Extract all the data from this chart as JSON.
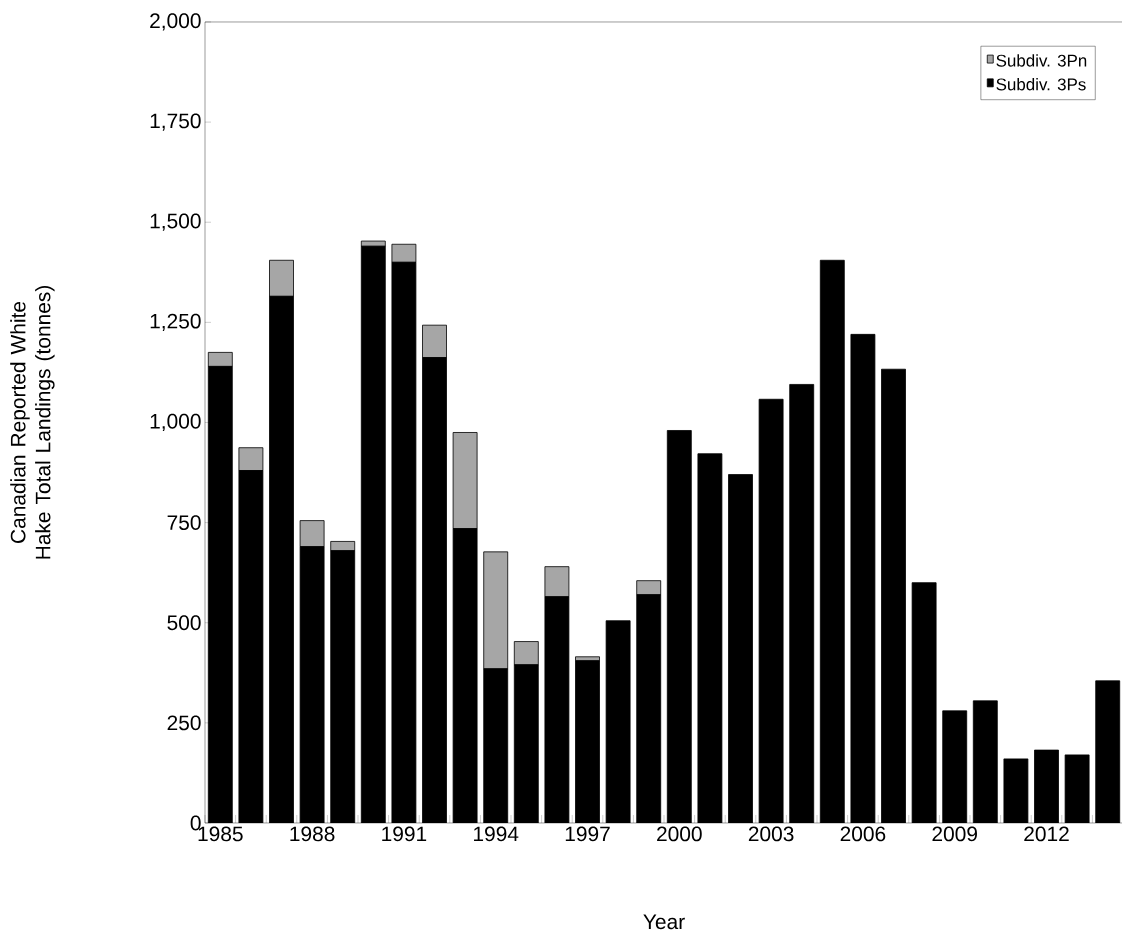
{
  "chart_data": {
    "type": "bar",
    "stacked": true,
    "xlabel": "Year",
    "ylabel": "Canadian Reported White Hake Total Landings (tonnes)",
    "categories": [
      "1985",
      null,
      null,
      "1988",
      null,
      null,
      "1991",
      null,
      null,
      "1994",
      null,
      null,
      "1997",
      null,
      null,
      "2000",
      null,
      null,
      "2003",
      null,
      null,
      "2006",
      null,
      null,
      "2009",
      null,
      null,
      "2012",
      null,
      null
    ],
    "series": [
      {
        "name": "Subdiv. 3Ps",
        "color": "#000000",
        "values": [
          1140,
          880,
          1315,
          690,
          680,
          1440,
          1400,
          1162,
          735,
          385,
          395,
          565,
          405,
          505,
          570,
          980,
          922,
          870,
          1058,
          1095,
          1405,
          1220,
          1133,
          600,
          280,
          305,
          160,
          182,
          170,
          355
        ]
      },
      {
        "name": "Subdiv. 3Pn",
        "color": "#a6a6a6",
        "values": [
          35,
          57,
          90,
          65,
          23,
          13,
          45,
          81,
          240,
          292,
          58,
          75,
          10,
          0,
          35,
          0,
          0,
          0,
          0,
          0,
          0,
          0,
          0,
          0,
          0,
          0,
          0,
          0,
          0,
          0
        ]
      }
    ],
    "ylim": [
      0,
      2000
    ],
    "yticks": [
      0,
      250,
      500,
      750,
      {
        "value": 1000,
        "label": "1,000"
      },
      {
        "value": 1250,
        "label": "1,250"
      },
      {
        "value": 1500,
        "label": "1,500"
      },
      {
        "value": 1750,
        "label": "1,750"
      },
      {
        "value": 2000,
        "label": "2,000"
      }
    ],
    "legend": "top right"
  }
}
